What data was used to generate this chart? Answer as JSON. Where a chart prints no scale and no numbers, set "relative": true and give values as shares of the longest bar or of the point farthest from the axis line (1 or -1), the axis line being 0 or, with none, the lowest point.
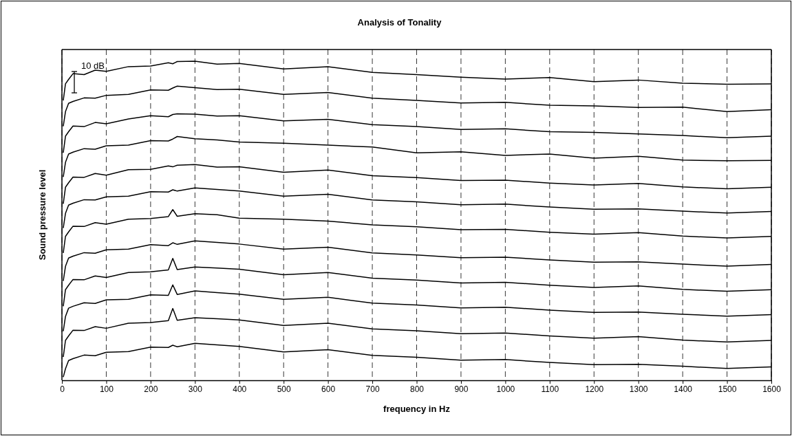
{
  "chart_data": {
    "type": "line",
    "title": "Analysis of Tonality",
    "xlabel": "frequency in Hz",
    "ylabel": "Sound pressure level",
    "annotations": [
      "10 dB"
    ],
    "relative": true,
    "grid": "x",
    "line_style": "solid",
    "xlim": [
      0,
      1600
    ],
    "xticks": [
      0,
      100,
      200,
      300,
      400,
      500,
      600,
      700,
      800,
      900,
      1000,
      1100,
      1200,
      1300,
      1400,
      1500,
      1600
    ],
    "x": [
      3,
      8,
      15,
      25,
      50,
      75,
      100,
      150,
      200,
      240,
      250,
      260,
      300,
      350,
      400,
      500,
      600,
      700,
      800,
      900,
      1000,
      1100,
      1200,
      1300,
      1400,
      1500,
      1600
    ],
    "series": [
      {
        "color": "#000000",
        "values": [
          0.877,
          0.929,
          0.943,
          0.961,
          0.958,
          0.972,
          0.968,
          0.983,
          0.985,
          0.995,
          0.992,
          0.999,
          1.0,
          0.991,
          0.993,
          0.976,
          0.983,
          0.965,
          0.958,
          0.95,
          0.944,
          0.949,
          0.936,
          0.941,
          0.931,
          0.928,
          0.929
        ]
      },
      {
        "color": "#000000",
        "values": [
          0.796,
          0.842,
          0.868,
          0.874,
          0.885,
          0.884,
          0.893,
          0.896,
          0.91,
          0.909,
          0.916,
          0.922,
          0.917,
          0.911,
          0.912,
          0.896,
          0.902,
          0.884,
          0.877,
          0.869,
          0.871,
          0.862,
          0.86,
          0.855,
          0.856,
          0.842,
          0.848
        ]
      },
      {
        "color": "#000000",
        "values": [
          0.713,
          0.765,
          0.779,
          0.797,
          0.795,
          0.808,
          0.804,
          0.819,
          0.829,
          0.826,
          0.833,
          0.835,
          0.834,
          0.828,
          0.829,
          0.813,
          0.818,
          0.801,
          0.795,
          0.786,
          0.788,
          0.779,
          0.777,
          0.772,
          0.767,
          0.76,
          0.765
        ]
      },
      {
        "color": "#000000",
        "values": [
          0.637,
          0.683,
          0.709,
          0.715,
          0.726,
          0.724,
          0.735,
          0.737,
          0.751,
          0.75,
          0.756,
          0.764,
          0.757,
          0.753,
          0.747,
          0.743,
          0.737,
          0.731,
          0.713,
          0.716,
          0.705,
          0.709,
          0.696,
          0.702,
          0.69,
          0.688,
          0.689
        ]
      },
      {
        "color": "#000000",
        "values": [
          0.553,
          0.605,
          0.619,
          0.637,
          0.636,
          0.648,
          0.643,
          0.66,
          0.661,
          0.672,
          0.669,
          0.674,
          0.676,
          0.668,
          0.669,
          0.652,
          0.659,
          0.641,
          0.635,
          0.626,
          0.627,
          0.618,
          0.612,
          0.617,
          0.606,
          0.6,
          0.605
        ]
      },
      {
        "color": "#000000",
        "values": [
          0.477,
          0.523,
          0.549,
          0.555,
          0.566,
          0.565,
          0.575,
          0.577,
          0.591,
          0.59,
          0.597,
          0.593,
          0.603,
          0.598,
          0.593,
          0.577,
          0.583,
          0.565,
          0.559,
          0.55,
          0.552,
          0.543,
          0.536,
          0.537,
          0.53,
          0.524,
          0.529
        ]
      },
      {
        "color": "#000000",
        "values": [
          0.399,
          0.451,
          0.465,
          0.483,
          0.482,
          0.494,
          0.489,
          0.505,
          0.507,
          0.513,
          0.535,
          0.514,
          0.522,
          0.519,
          0.508,
          0.505,
          0.499,
          0.487,
          0.481,
          0.472,
          0.473,
          0.464,
          0.458,
          0.463,
          0.452,
          0.446,
          0.451
        ]
      },
      {
        "color": "#000000",
        "values": [
          0.311,
          0.357,
          0.383,
          0.389,
          0.4,
          0.398,
          0.409,
          0.411,
          0.425,
          0.422,
          0.431,
          0.426,
          0.437,
          0.432,
          0.427,
          0.411,
          0.417,
          0.399,
          0.393,
          0.384,
          0.386,
          0.377,
          0.37,
          0.371,
          0.364,
          0.358,
          0.363
        ]
      },
      {
        "color": "#000000",
        "values": [
          0.232,
          0.284,
          0.298,
          0.316,
          0.315,
          0.327,
          0.322,
          0.338,
          0.34,
          0.346,
          0.382,
          0.347,
          0.355,
          0.352,
          0.348,
          0.331,
          0.338,
          0.32,
          0.314,
          0.305,
          0.307,
          0.298,
          0.291,
          0.296,
          0.285,
          0.279,
          0.284
        ]
      },
      {
        "color": "#000000",
        "values": [
          0.154,
          0.2,
          0.226,
          0.232,
          0.243,
          0.241,
          0.252,
          0.254,
          0.268,
          0.266,
          0.299,
          0.269,
          0.28,
          0.275,
          0.27,
          0.254,
          0.26,
          0.242,
          0.236,
          0.227,
          0.229,
          0.22,
          0.213,
          0.214,
          0.207,
          0.201,
          0.206
        ]
      },
      {
        "color": "#000000",
        "values": [
          0.073,
          0.125,
          0.139,
          0.157,
          0.156,
          0.168,
          0.163,
          0.179,
          0.181,
          0.187,
          0.225,
          0.188,
          0.196,
          0.193,
          0.189,
          0.172,
          0.179,
          0.161,
          0.155,
          0.146,
          0.148,
          0.139,
          0.132,
          0.137,
          0.126,
          0.12,
          0.125
        ]
      },
      {
        "color": "#000000",
        "values": [
          0.01,
          0.036,
          0.062,
          0.068,
          0.079,
          0.077,
          0.088,
          0.09,
          0.104,
          0.103,
          0.11,
          0.105,
          0.116,
          0.111,
          0.106,
          0.089,
          0.096,
          0.078,
          0.072,
          0.063,
          0.065,
          0.056,
          0.049,
          0.05,
          0.044,
          0.037,
          0.042
        ]
      }
    ]
  }
}
